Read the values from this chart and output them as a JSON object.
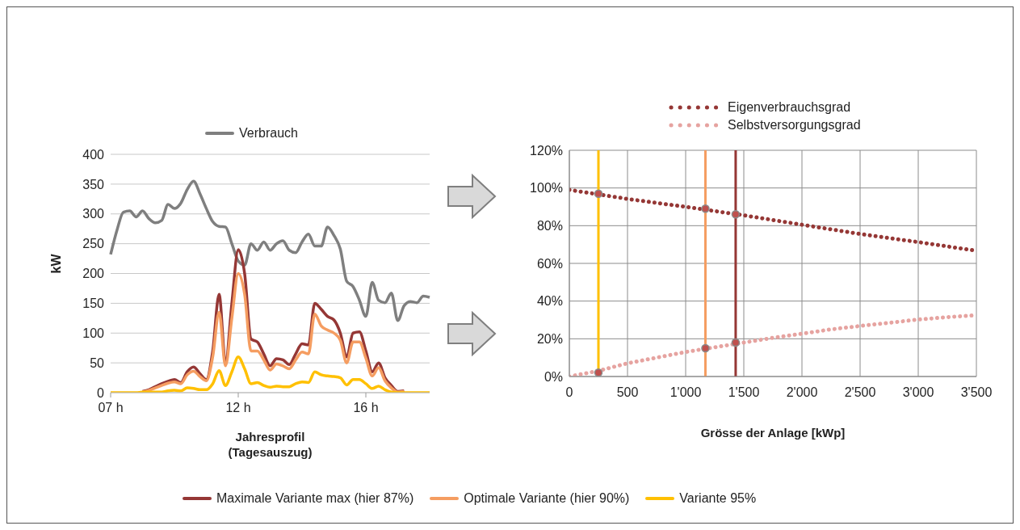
{
  "chart_data": [
    {
      "type": "line",
      "xlabel": "Jahresprofil\n(Tagesauszug)",
      "ylabel": "kW",
      "categories": [
        "07 h",
        null,
        null,
        null,
        null,
        null,
        null,
        null,
        null,
        null,
        null,
        null,
        null,
        null,
        null,
        null,
        null,
        null,
        null,
        null,
        "12 h",
        null,
        null,
        null,
        null,
        null,
        null,
        null,
        null,
        null,
        null,
        null,
        null,
        null,
        null,
        null,
        null,
        null,
        null,
        null,
        "16 h",
        null,
        null,
        null,
        null,
        null,
        null,
        null,
        null,
        null,
        null
      ],
      "ylim": [
        0,
        400
      ],
      "yticks": [
        0,
        50,
        100,
        150,
        200,
        250,
        300,
        350,
        400
      ],
      "grid": "y",
      "legend": "bottom",
      "marker": "none",
      "series": [
        {
          "name": "Verbrauch",
          "color": "#7f7f7f",
          "values": [
            232,
            273,
            303,
            305,
            295,
            305,
            292,
            285,
            289,
            316,
            309,
            318,
            341,
            355,
            334,
            309,
            287,
            279,
            278,
            250,
            221,
            214,
            250,
            239,
            253,
            239,
            250,
            255,
            239,
            235,
            253,
            266,
            246,
            246,
            278,
            264,
            241,
            187,
            178,
            155,
            128,
            185,
            155,
            151,
            167,
            121,
            146,
            153,
            151,
            162,
            160
          ]
        },
        {
          "name": "Maximale Variante max (hier 87%)",
          "color": "#953735",
          "values": [
            null,
            null,
            null,
            null,
            null,
            2,
            5,
            10,
            15,
            19,
            22,
            17,
            35,
            43,
            32,
            22,
            70,
            165,
            50,
            150,
            240,
            200,
            90,
            85,
            65,
            45,
            57,
            55,
            47,
            65,
            82,
            80,
            150,
            140,
            128,
            122,
            100,
            60,
            100,
            102,
            70,
            35,
            50,
            25,
            12,
            2,
            3,
            null,
            null,
            null,
            null
          ]
        },
        {
          "name": "Optimale Variante (hier 90%)",
          "color": "#f59d61",
          "values": [
            null,
            null,
            null,
            null,
            null,
            1,
            4,
            8,
            12,
            16,
            18,
            15,
            30,
            36,
            27,
            20,
            60,
            135,
            45,
            125,
            200,
            165,
            70,
            70,
            55,
            38,
            48,
            45,
            40,
            55,
            68,
            65,
            132,
            112,
            105,
            100,
            88,
            50,
            85,
            85,
            58,
            28,
            42,
            20,
            8,
            1,
            2,
            null,
            null,
            null,
            null
          ]
        },
        {
          "name": "Variante 95%",
          "color": "#ffc000",
          "values": [
            0,
            0,
            0,
            0,
            0,
            1,
            1,
            1,
            1,
            3,
            4,
            3,
            8,
            7,
            5,
            5,
            15,
            37,
            12,
            35,
            60,
            40,
            15,
            17,
            12,
            9,
            11,
            10,
            10,
            15,
            18,
            17,
            35,
            30,
            28,
            27,
            25,
            13,
            22,
            22,
            15,
            7,
            11,
            5,
            1,
            0,
            0,
            0,
            0,
            0,
            0
          ]
        }
      ]
    },
    {
      "type": "line",
      "xlabel": "Grösse der Anlage [kWp]",
      "xlim": [
        0,
        3500
      ],
      "xticks": [
        0,
        500,
        {
          "value": 1000,
          "label": "1'000"
        },
        {
          "value": 1500,
          "label": "1'500"
        },
        {
          "value": 2000,
          "label": "2'000"
        },
        {
          "value": 2500,
          "label": "2'500"
        },
        {
          "value": 3000,
          "label": "3'000"
        },
        {
          "value": 3500,
          "label": "3'500"
        }
      ],
      "ylim": [
        0,
        120
      ],
      "yticks": [
        {
          "value": 0,
          "label": "0%"
        },
        {
          "value": 20,
          "label": "20%"
        },
        {
          "value": 40,
          "label": "40%"
        },
        {
          "value": 60,
          "label": "60%"
        },
        {
          "value": 80,
          "label": "80%"
        },
        {
          "value": 100,
          "label": "100%"
        },
        {
          "value": 120,
          "label": "120%"
        }
      ],
      "grid": true,
      "legend": "top",
      "series": [
        {
          "name": "Eigenverbrauchsgrad",
          "type": "line",
          "color": "#953735",
          "line_style": "dotted",
          "marker": "none",
          "x": [
            0,
            500,
            1000,
            1500,
            2000,
            2500,
            3000,
            3500
          ],
          "values": [
            99,
            94.2,
            90,
            85.5,
            80.5,
            75.6,
            71.3,
            66.7
          ]
        },
        {
          "name": "Selbstversorgungsgrad",
          "type": "line",
          "color": "#e6a3a0",
          "line_style": "dotted",
          "marker": "none",
          "x": [
            0,
            250,
            500,
            750,
            1000,
            1250,
            1500,
            1750,
            2000,
            2250,
            2500,
            2750,
            3000,
            3250,
            3500
          ],
          "values": [
            0,
            3,
            7,
            10,
            13,
            15.5,
            18,
            20.5,
            22.7,
            25,
            26.8,
            28.5,
            30.2,
            31.5,
            32.5
          ]
        },
        {
          "type": "scatter",
          "color": "#c0504d",
          "marker": "circle",
          "x": [
            250,
            1170,
            1430,
            250,
            1170,
            1430
          ],
          "values": [
            97,
            89,
            86,
            2,
            15,
            18
          ]
        }
      ],
      "ref_lines": [
        {
          "axis": "x",
          "value": 250,
          "color": "#ffc000"
        },
        {
          "axis": "x",
          "value": 1170,
          "color": "#f59d61"
        },
        {
          "axis": "x",
          "value": 1430,
          "color": "#953735"
        }
      ]
    }
  ]
}
